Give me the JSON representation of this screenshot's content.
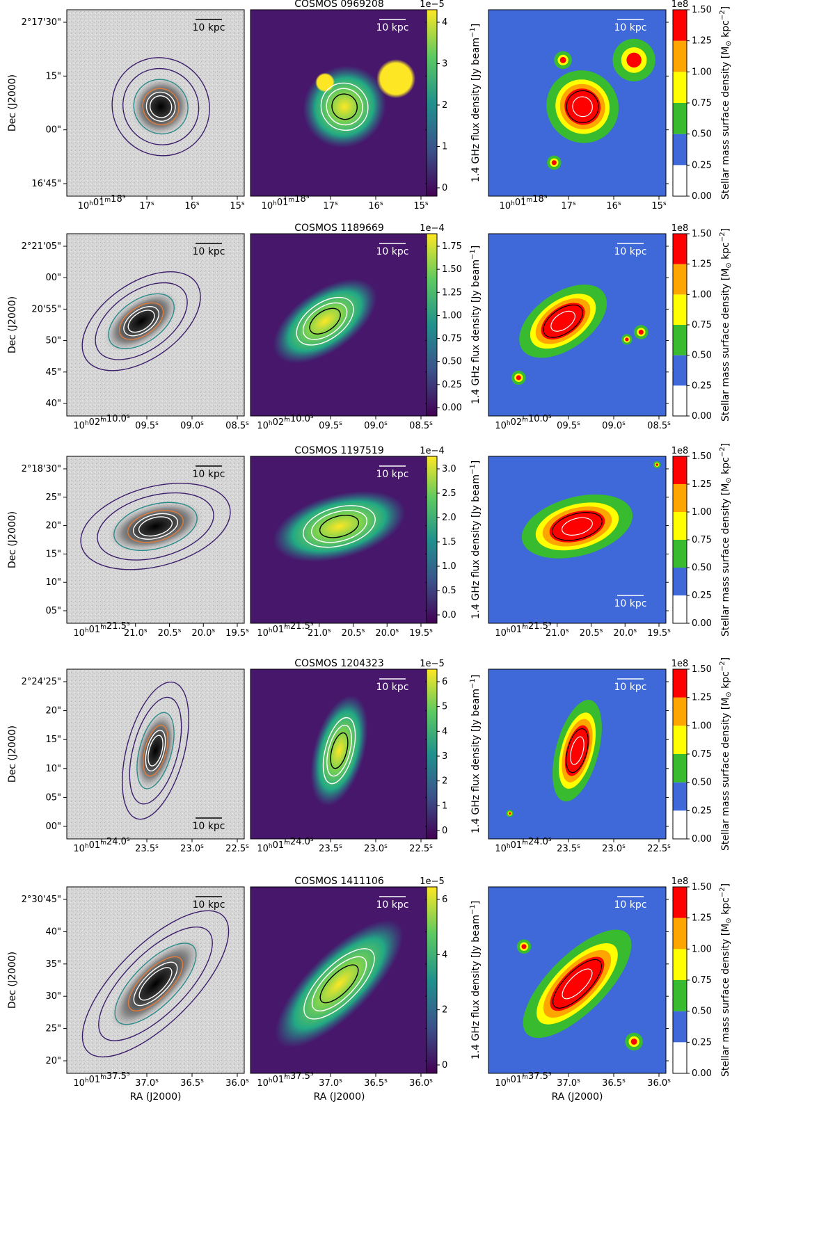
{
  "figure": {
    "ylabel": "Dec (J2000)",
    "xlabel": "RA (J2000)",
    "scalebar": "10 kpc",
    "flux_label": "1.4 GHz flux density [Jy beam",
    "flux_sup": "−1",
    "flux_close": "]",
    "mass_label_a": "Stellar mass surface density [M",
    "mass_sun": "⊙",
    "mass_label_b": " kpc",
    "mass_sup": "−2",
    "mass_close": "]",
    "mass_exp": "1e8",
    "mass_ticks": [
      "0.00",
      "0.25",
      "0.50",
      "0.75",
      "1.00",
      "1.25",
      "1.50"
    ],
    "mass_colors": [
      "#ffffff",
      "#3f68d8",
      "#38bb2e",
      "#ffff00",
      "#ffa500",
      "#ff0000"
    ]
  },
  "rows": [
    {
      "title": "COSMOS 0969208",
      "dec_ticks": [
        "2°17'30\"",
        "15\"",
        "00\"",
        "16'45\""
      ],
      "ra_ticks": [
        "10h01m18s",
        "17s",
        "16s",
        "15s"
      ],
      "flux_exp": "1e−5",
      "flux_ticks": [
        "0",
        "1",
        "2",
        "3",
        "4"
      ]
    },
    {
      "title": "COSMOS 1189669",
      "dec_ticks": [
        "2°21'05\"",
        "00\"",
        "20'55\"",
        "50\"",
        "45\"",
        "40\""
      ],
      "ra_ticks": [
        "10h02m10.0s",
        "09.5s",
        "09.0s",
        "08.5s"
      ],
      "flux_exp": "1e−4",
      "flux_ticks": [
        "0.00",
        "0.25",
        "0.50",
        "0.75",
        "1.00",
        "1.25",
        "1.50",
        "1.75"
      ]
    },
    {
      "title": "COSMOS 1197519",
      "dec_ticks": [
        "2°18'30\"",
        "25\"",
        "20\"",
        "15\"",
        "10\"",
        "05\""
      ],
      "ra_ticks": [
        "10h01m21.5s",
        "21.0s",
        "20.5s",
        "20.0s",
        "19.5s"
      ],
      "flux_exp": "1e−4",
      "flux_ticks": [
        "0.0",
        "0.5",
        "1.0",
        "1.5",
        "2.0",
        "2.5",
        "3.0"
      ]
    },
    {
      "title": "COSMOS 1204323",
      "dec_ticks": [
        "2°24'25\"",
        "20\"",
        "15\"",
        "10\"",
        "05\"",
        "00\""
      ],
      "ra_ticks": [
        "10h01m24.0s",
        "23.5s",
        "23.0s",
        "22.5s"
      ],
      "flux_exp": "1e−5",
      "flux_ticks": [
        "0",
        "1",
        "2",
        "3",
        "4",
        "5",
        "6"
      ]
    },
    {
      "title": "COSMOS 1411106",
      "dec_ticks": [
        "2°30'45\"",
        "40\"",
        "35\"",
        "30\"",
        "25\"",
        "20\""
      ],
      "ra_ticks": [
        "10h01m37.5s",
        "37.0s",
        "36.5s",
        "36.0s"
      ],
      "flux_exp": "1e−5",
      "flux_ticks": [
        "0",
        "2",
        "4",
        "6"
      ]
    }
  ]
}
